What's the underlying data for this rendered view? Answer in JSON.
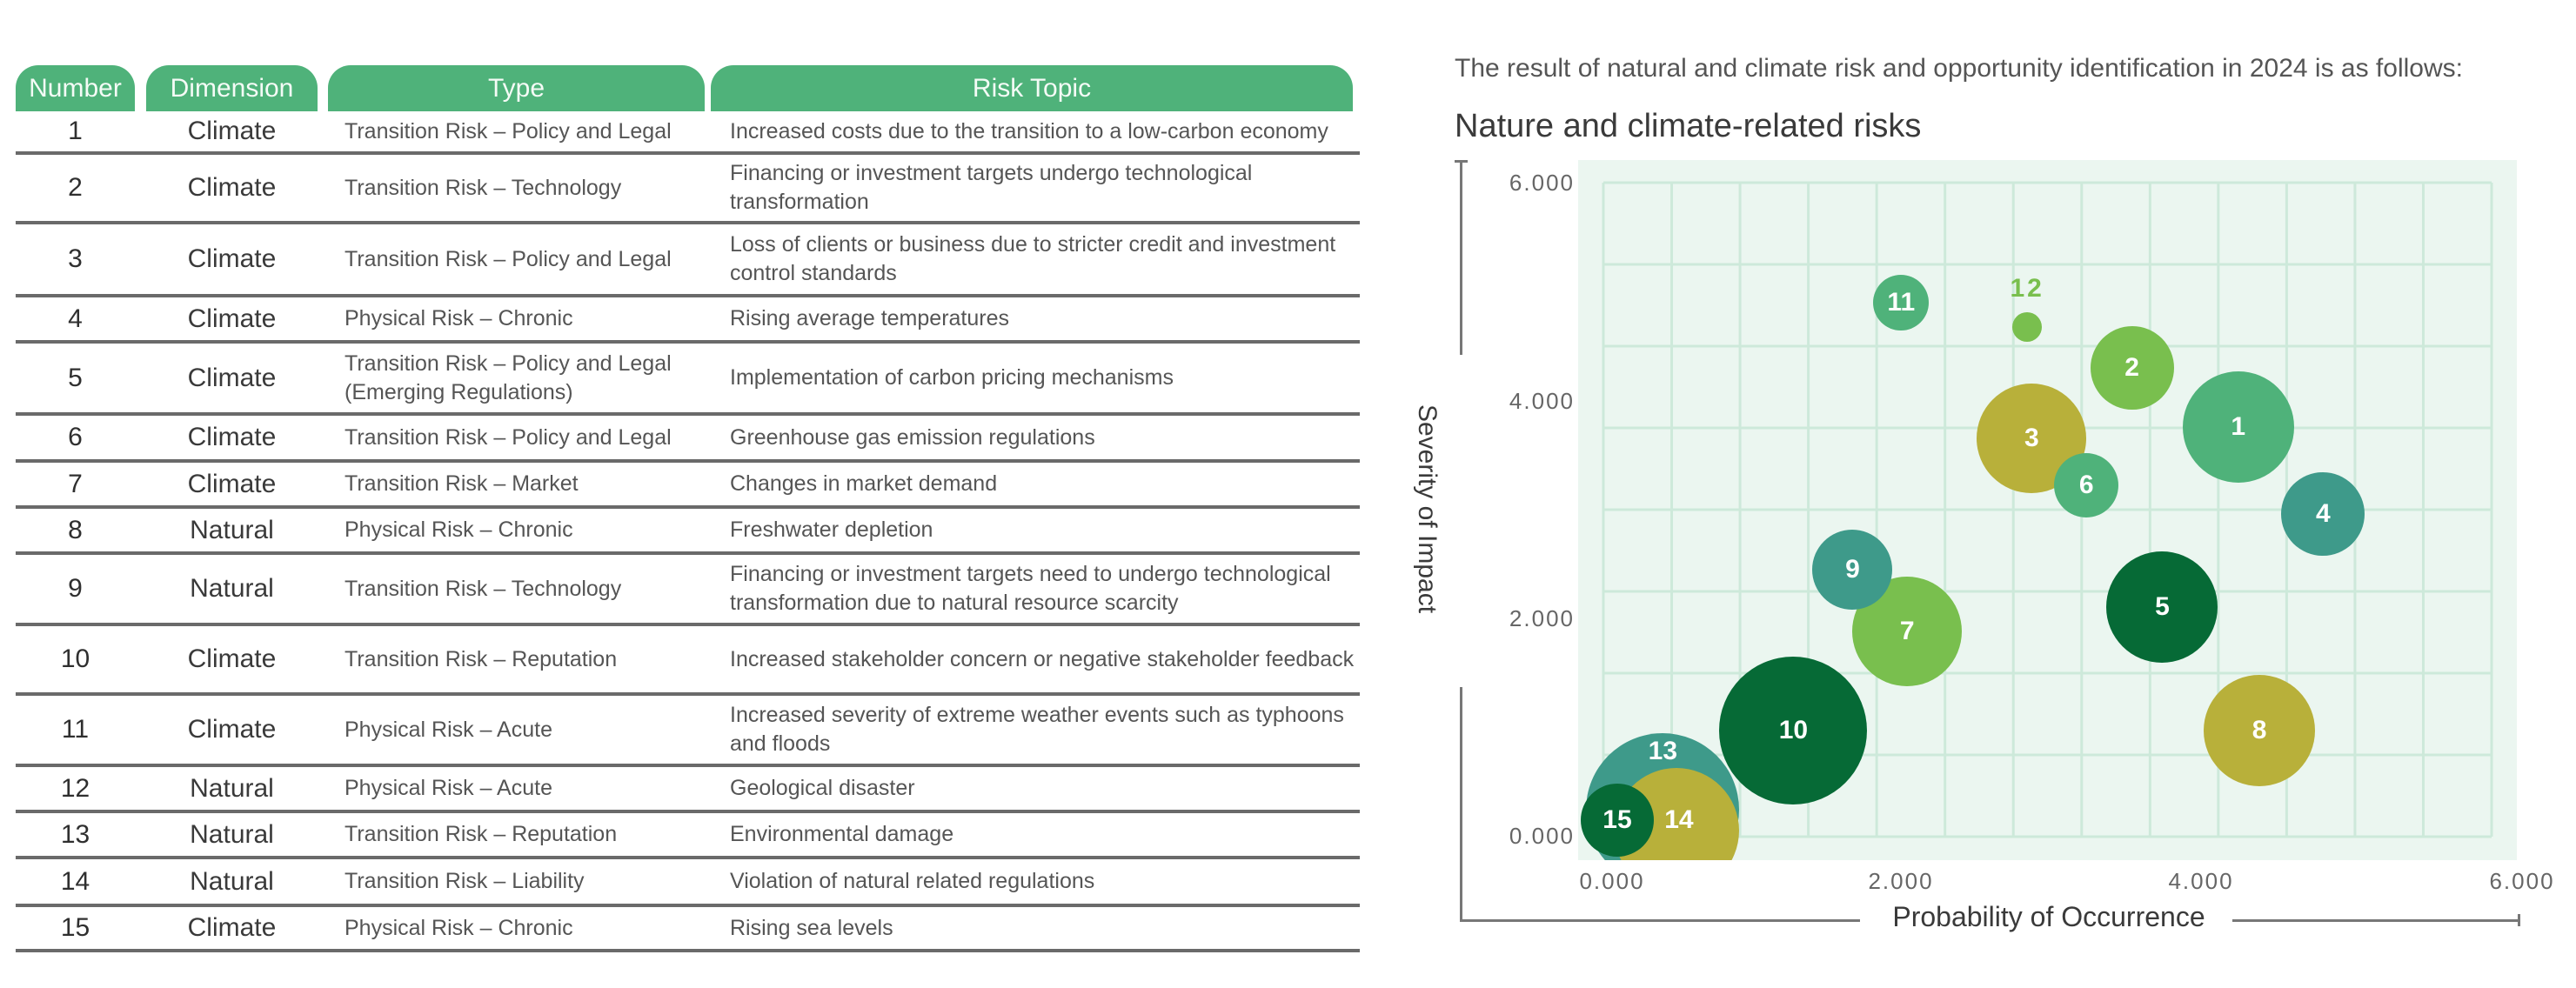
{
  "table": {
    "headers": [
      "Number",
      "Dimension",
      "Type",
      "Risk Topic"
    ],
    "header_color": "#4fb27a",
    "rows": [
      {
        "number": "1",
        "dimension": "Climate",
        "type": "Transition Risk – Policy and Legal",
        "topic": "Increased costs due to the transition to a low-carbon economy"
      },
      {
        "number": "2",
        "dimension": "Climate",
        "type": "Transition Risk – Technology",
        "topic": "Financing or investment targets undergo technological transformation"
      },
      {
        "number": "3",
        "dimension": "Climate",
        "type": "Transition Risk – Policy and Legal",
        "topic": "Loss of clients or business due to stricter credit and investment control standards"
      },
      {
        "number": "4",
        "dimension": "Climate",
        "type": "Physical Risk – Chronic",
        "topic": "Rising average temperatures"
      },
      {
        "number": "5",
        "dimension": "Climate",
        "type": "Transition Risk – Policy and Legal (Emerging Regulations)",
        "topic": "Implementation of carbon pricing mechanisms"
      },
      {
        "number": "6",
        "dimension": "Climate",
        "type": "Transition Risk – Policy and Legal",
        "topic": "Greenhouse gas emission regulations"
      },
      {
        "number": "7",
        "dimension": "Climate",
        "type": "Transition Risk – Market",
        "topic": "Changes in market demand"
      },
      {
        "number": "8",
        "dimension": "Natural",
        "type": "Physical Risk – Chronic",
        "topic": "Freshwater depletion"
      },
      {
        "number": "9",
        "dimension": "Natural",
        "type": "Transition Risk – Technology",
        "topic": "Financing or investment targets need to undergo technological transformation due to natural resource scarcity"
      },
      {
        "number": "10",
        "dimension": "Climate",
        "type": "Transition Risk – Reputation",
        "topic": "Increased stakeholder concern or negative stakeholder feedback"
      },
      {
        "number": "11",
        "dimension": "Climate",
        "type": "Physical Risk – Acute",
        "topic": "Increased severity of extreme weather events such as typhoons and floods"
      },
      {
        "number": "12",
        "dimension": "Natural",
        "type": "Physical Risk – Acute",
        "topic": "Geological disaster"
      },
      {
        "number": "13",
        "dimension": "Natural",
        "type": "Transition Risk – Reputation",
        "topic": "Environmental damage"
      },
      {
        "number": "14",
        "dimension": "Natural",
        "type": "Transition Risk – Liability",
        "topic": "Violation of natural related regulations"
      },
      {
        "number": "15",
        "dimension": "Climate",
        "type": "Physical Risk – Chronic",
        "topic": "Rising sea levels"
      }
    ]
  },
  "intro_text": "The result of natural and climate risk and opportunity identification in 2024 is as follows:",
  "chart_data": {
    "type": "scatter",
    "subtype": "bubble",
    "title": "Nature and climate-related risks",
    "xlabel": "Probability of Occurrence",
    "ylabel": "Severity of Impact",
    "xlim": [
      0,
      6
    ],
    "ylim": [
      0,
      6
    ],
    "x_ticks": [
      "0.000",
      "2.000",
      "4.000",
      "6.000"
    ],
    "y_ticks": [
      "0.000",
      "2.000",
      "4.000",
      "6.000"
    ],
    "grid": true,
    "legend": "none",
    "background_color": "#ebf6f0",
    "points": [
      {
        "label": "1",
        "x": 4.13,
        "y": 3.75,
        "r": 64,
        "color": "#4fb27a"
      },
      {
        "label": "2",
        "x": 3.43,
        "y": 4.3,
        "r": 48,
        "color": "#79bf4e"
      },
      {
        "label": "3",
        "x": 2.77,
        "y": 3.65,
        "r": 63,
        "color": "#b8b03a"
      },
      {
        "label": "4",
        "x": 4.69,
        "y": 2.95,
        "r": 48,
        "color": "#3e9a8a"
      },
      {
        "label": "5",
        "x": 3.63,
        "y": 2.1,
        "r": 64,
        "color": "#066a36"
      },
      {
        "label": "6",
        "x": 3.13,
        "y": 3.22,
        "r": 37,
        "color": "#4fb27a"
      },
      {
        "label": "7",
        "x": 1.95,
        "y": 1.87,
        "r": 63,
        "color": "#79bf4e"
      },
      {
        "label": "8",
        "x": 4.27,
        "y": 0.96,
        "r": 64,
        "color": "#b8b03a"
      },
      {
        "label": "9",
        "x": 1.59,
        "y": 2.44,
        "r": 46,
        "color": "#3e9a8a"
      },
      {
        "label": "10",
        "x": 1.2,
        "y": 0.96,
        "r": 85,
        "color": "#066a36"
      },
      {
        "label": "11",
        "x": 1.91,
        "y": 4.9,
        "r": 32,
        "color": "#4fb27a"
      },
      {
        "label": "12",
        "x": 2.74,
        "y": 4.67,
        "r": 17,
        "color": "#79bf4e"
      },
      {
        "label": "13",
        "x": 0.34,
        "y": 0.23,
        "r": 88,
        "color": "#3e9a8a"
      },
      {
        "label": "14",
        "x": 0.43,
        "y": 0.04,
        "r": 72,
        "color": "#b8b03a"
      },
      {
        "label": "15",
        "x": 0.04,
        "y": 0.14,
        "r": 42,
        "color": "#066a36"
      }
    ]
  }
}
